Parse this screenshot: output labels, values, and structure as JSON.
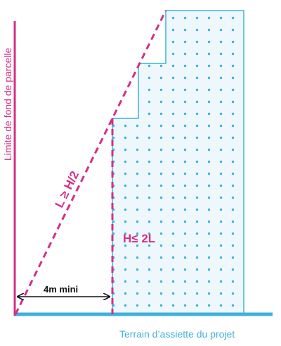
{
  "labels": {
    "boundary": "Limite de fond de parcelle",
    "slope_rule": "L ≥ H/2",
    "height_rule": "H≤ 2L",
    "min_distance": "4m mini",
    "ground": "Terrain d’assiette du projet"
  },
  "colors": {
    "magenta": "#d42f86",
    "cyan": "#3fb2d8",
    "building_fill": "#eef8fc",
    "arrow": "#111111"
  }
}
